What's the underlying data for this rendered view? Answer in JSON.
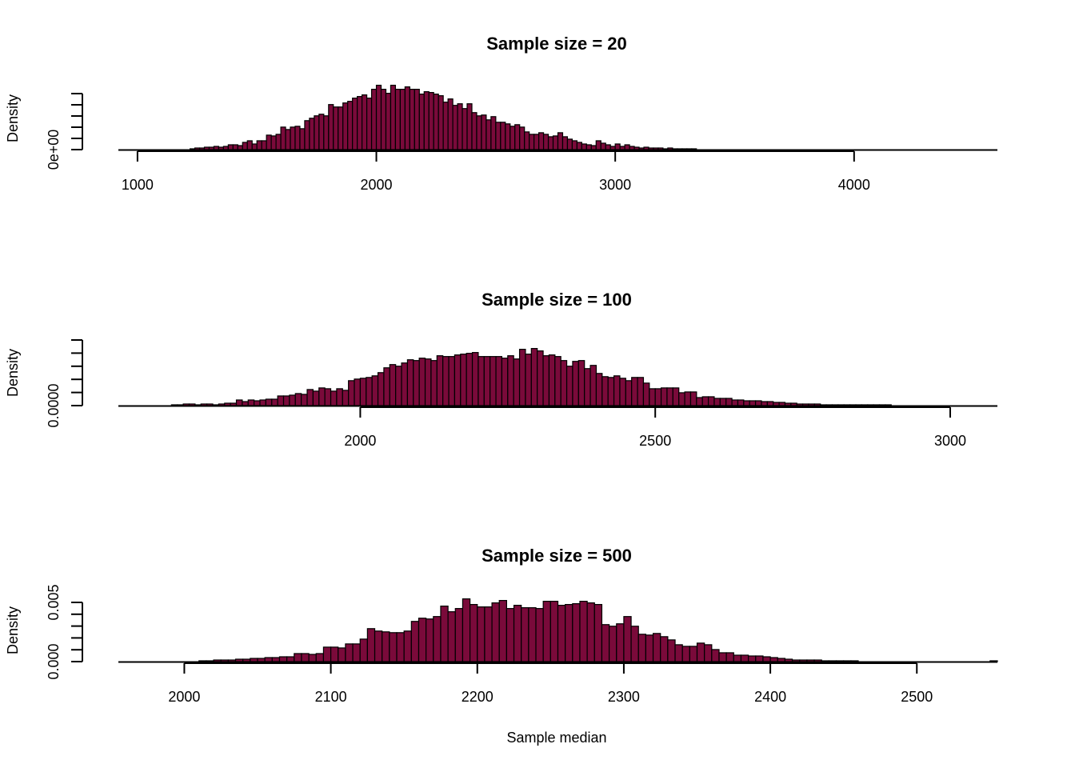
{
  "colors": {
    "bar_fill": "#7a0a3a",
    "bar_stroke": "#000000",
    "axis": "#000000",
    "background": "#ffffff"
  },
  "figure": {
    "xlabel": "Sample median"
  },
  "chart_data": [
    {
      "type": "bar",
      "title": "Sample size = 20",
      "xlabel": "",
      "ylabel": "Density",
      "xlim": [
        920,
        4600
      ],
      "ylim": [
        0,
        0.0011
      ],
      "bin_start": 900,
      "bin_width": 20,
      "x_ticks": [
        1000,
        2000,
        3000,
        4000
      ],
      "x_tick_labels": [
        "1000",
        "2000",
        "3000",
        "4000"
      ],
      "y_ticks": [
        0,
        0.0002,
        0.0004,
        0.0006,
        0.0008,
        0.001
      ],
      "y_tick_labels": [
        "0e+00",
        "",
        "",
        "",
        "",
        ""
      ],
      "values": [
        0,
        0,
        0,
        0,
        0,
        0,
        0,
        0,
        0,
        0,
        0,
        0,
        0,
        0,
        0,
        0,
        1.4e-05,
        2.8e-05,
        2.8e-05,
        4.2e-05,
        4.2e-05,
        5.6e-05,
        4.2e-05,
        5.6e-05,
        8.4e-05,
        8.4e-05,
        7e-05,
        0.000126,
        0.000154,
        9.8e-05,
        0.000154,
        0.000154,
        0.000252,
        0.000238,
        0.000266,
        0.000392,
        0.00035,
        0.000392,
        0.000406,
        0.000364,
        0.000504,
        0.000546,
        0.000588,
        0.000616,
        0.000588,
        0.000784,
        0.000742,
        0.000742,
        0.000812,
        0.00084,
        0.000896,
        0.000924,
        0.000952,
        0.000896,
        0.00105,
        0.00112,
        0.00105,
        0.00098,
        0.00112,
        0.00105,
        0.00105,
        0.001092,
        0.00105,
        0.00105,
        0.000966,
        0.001008,
        0.000994,
        0.000966,
        0.000938,
        0.000826,
        0.000882,
        0.00077,
        0.000798,
        0.000714,
        0.000798,
        0.000644,
        0.000588,
        0.000602,
        0.000518,
        0.000574,
        0.000476,
        0.000476,
        0.000448,
        0.000406,
        0.000434,
        0.000392,
        0.000308,
        0.000266,
        0.000266,
        0.000294,
        0.000266,
        0.000224,
        0.000238,
        0.000294,
        0.000224,
        0.000182,
        0.000154,
        0.000126,
        9.8e-05,
        8.4e-05,
        7e-05,
        0.000154,
        0.000112,
        8.4e-05,
        5.6e-05,
        9.8e-05,
        5.6e-05,
        8.4e-05,
        5.6e-05,
        4.2e-05,
        2.8e-05,
        4.2e-05,
        2.8e-05,
        2.8e-05,
        2.8e-05,
        1.4e-05,
        2.8e-05,
        1.4e-05,
        1.4e-05,
        1.4e-05,
        1.4e-05,
        1.4e-05,
        0,
        0,
        0,
        0,
        0,
        0,
        0,
        0,
        0,
        0,
        0,
        0,
        0,
        0,
        0,
        0,
        0,
        0,
        0,
        0,
        0,
        0,
        0,
        0,
        0,
        0,
        0,
        0,
        0,
        0,
        0,
        0,
        0,
        0,
        0,
        0,
        0,
        0,
        0,
        0,
        0,
        0,
        0,
        0,
        0,
        0,
        0,
        0,
        0,
        0,
        0,
        0,
        0,
        0,
        0,
        0,
        0,
        0,
        0,
        0,
        0,
        0,
        0,
        0,
        0,
        0,
        0,
        0,
        0,
        0,
        0,
        0,
        0,
        0,
        0,
        0
      ]
    },
    {
      "type": "bar",
      "title": "Sample size = 100",
      "xlabel": "",
      "ylabel": "Density",
      "xlim": [
        1590,
        3080
      ],
      "ylim": [
        0,
        0.0055
      ],
      "bin_start": 1590,
      "bin_width": 10,
      "x_ticks": [
        2000,
        2500,
        3000
      ],
      "x_tick_labels": [
        "2000",
        "2500",
        "3000"
      ],
      "y_ticks": [
        0,
        0.001,
        0.002,
        0.003,
        0.004,
        0.005
      ],
      "y_tick_labels": [
        "0.0000",
        "",
        "",
        "",
        "",
        ""
      ],
      "values": [
        0,
        0,
        0,
        0,
        0,
        0,
        0,
        0,
        0,
        7e-05,
        7e-05,
        0.00014,
        0.00014,
        7e-05,
        0.00014,
        0.00014,
        7e-05,
        0.00014,
        0.00021,
        0.00021,
        0.00049,
        0.00035,
        0.00049,
        0.00042,
        0.00049,
        0.00056,
        0.00056,
        0.00084,
        0.00084,
        0.00091,
        0.00105,
        0.00098,
        0.0014,
        0.00126,
        0.00154,
        0.00147,
        0.00126,
        0.00147,
        0.00133,
        0.00217,
        0.00231,
        0.00238,
        0.00245,
        0.00259,
        0.00287,
        0.00329,
        0.00357,
        0.00343,
        0.00371,
        0.00399,
        0.00392,
        0.00413,
        0.00406,
        0.00392,
        0.00434,
        0.00427,
        0.00427,
        0.00441,
        0.00448,
        0.00455,
        0.00462,
        0.00427,
        0.00427,
        0.00427,
        0.00427,
        0.00413,
        0.00434,
        0.00406,
        0.0049,
        0.00448,
        0.00497,
        0.00476,
        0.00434,
        0.00441,
        0.00427,
        0.00392,
        0.00343,
        0.00385,
        0.00392,
        0.00322,
        0.0035,
        0.0028,
        0.00252,
        0.00245,
        0.00259,
        0.00238,
        0.00217,
        0.00245,
        0.00245,
        0.00196,
        0.00147,
        0.00147,
        0.00154,
        0.00154,
        0.00154,
        0.00112,
        0.00119,
        0.00119,
        0.0007,
        0.00077,
        0.00077,
        0.00063,
        0.00063,
        0.00063,
        0.00049,
        0.00049,
        0.00042,
        0.00042,
        0.00042,
        0.00035,
        0.00035,
        0.00028,
        0.00028,
        0.00021,
        0.00021,
        0.00014,
        0.00014,
        0.00014,
        0.00014,
        7e-05,
        7e-05,
        7e-05,
        7e-05,
        7e-05,
        7e-05,
        7e-05,
        7e-05,
        7e-05,
        7e-05,
        7e-05,
        7e-05,
        0,
        0,
        0,
        0,
        0,
        0,
        0,
        0,
        0,
        0,
        0,
        0,
        0,
        0,
        0,
        0,
        0
      ]
    },
    {
      "type": "bar",
      "title": "Sample size = 500",
      "xlabel": "",
      "ylabel": "Density",
      "xlim": [
        1955,
        2555
      ],
      "ylim": [
        0,
        0.0055
      ],
      "bin_start": 1955,
      "bin_width": 5,
      "x_ticks": [
        2000,
        2100,
        2200,
        2300,
        2400,
        2500
      ],
      "x_tick_labels": [
        "2000",
        "2100",
        "2200",
        "2300",
        "2400",
        "2500"
      ],
      "y_ticks": [
        0,
        0.001,
        0.002,
        0.003,
        0.004,
        0.005
      ],
      "y_tick_labels": [
        "0.000",
        "",
        "",
        "",
        "",
        "0.005"
      ],
      "values": [
        0,
        0,
        0,
        0,
        0,
        0,
        0,
        0,
        0,
        0,
        0,
        7e-05,
        7e-05,
        0.00014,
        0.00014,
        0.00014,
        0.00021,
        0.00021,
        0.00028,
        0.00028,
        0.00035,
        0.00035,
        0.00042,
        0.00042,
        0.0007,
        0.0007,
        0.00063,
        0.0007,
        0.00126,
        0.00126,
        0.00119,
        0.00154,
        0.00154,
        0.00196,
        0.00287,
        0.00266,
        0.00259,
        0.00252,
        0.00252,
        0.00266,
        0.0035,
        0.00378,
        0.00371,
        0.00392,
        0.00483,
        0.00434,
        0.00462,
        0.00546,
        0.00497,
        0.00476,
        0.00476,
        0.00511,
        0.00532,
        0.00462,
        0.0049,
        0.00469,
        0.00469,
        0.00462,
        0.00525,
        0.00525,
        0.0049,
        0.00497,
        0.00504,
        0.00525,
        0.00511,
        0.00497,
        0.00322,
        0.00308,
        0.00329,
        0.00392,
        0.00308,
        0.00238,
        0.00231,
        0.00245,
        0.00217,
        0.00189,
        0.00147,
        0.00133,
        0.00133,
        0.00161,
        0.00147,
        0.00105,
        0.00077,
        0.00077,
        0.00056,
        0.00056,
        0.00049,
        0.00049,
        0.00042,
        0.00035,
        0.00028,
        0.00021,
        0.00014,
        0.00014,
        0.00014,
        0.00014,
        7e-05,
        7e-05,
        7e-05,
        7e-05,
        7e-05,
        0,
        0,
        0,
        0,
        0,
        0,
        0,
        0,
        0,
        0,
        0,
        0,
        0,
        0,
        0,
        0,
        0,
        0,
        7e-05,
        0,
        0,
        0
      ]
    }
  ]
}
